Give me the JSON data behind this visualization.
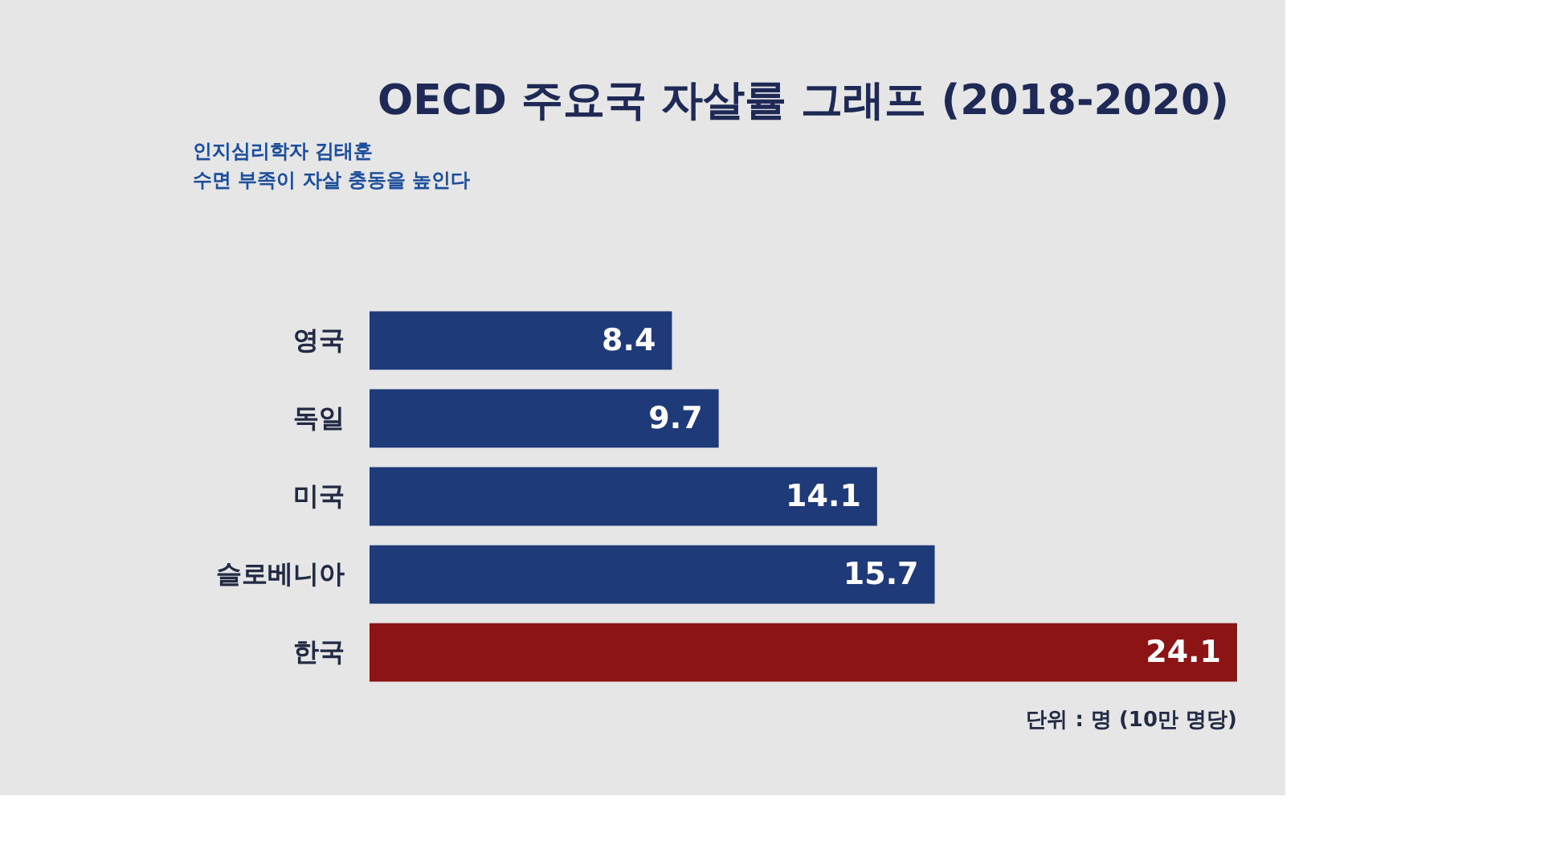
{
  "chart_data": {
    "type": "bar",
    "orientation": "horizontal",
    "title": "OECD 주요국 자살률 그래프 (2018-2020)",
    "categories": [
      "영국",
      "독일",
      "미국",
      "슬로베니아",
      "한국"
    ],
    "values": [
      8.4,
      9.7,
      14.1,
      15.7,
      24.1
    ],
    "colors": [
      "#1f3a78",
      "#1f3a78",
      "#1f3a78",
      "#1f3a78",
      "#8c1414"
    ],
    "data_labels": true,
    "annotations": [
      "인지심리학자 김태훈",
      "수면 부족이 자살 충동을 높인다",
      "단위 : 명 (10만 명당)"
    ]
  }
}
